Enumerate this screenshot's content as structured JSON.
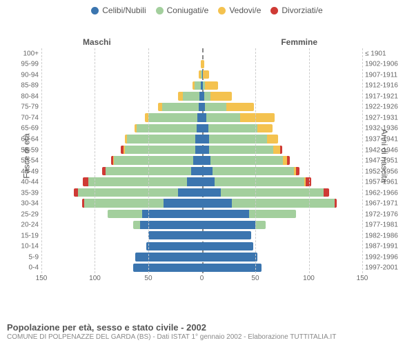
{
  "legend": {
    "items": [
      {
        "label": "Celibi/Nubili",
        "color": "#3b75af"
      },
      {
        "label": "Coniugati/e",
        "color": "#a3cf9d"
      },
      {
        "label": "Vedovi/e",
        "color": "#f4c24f"
      },
      {
        "label": "Divorziati/e",
        "color": "#cf3a35"
      }
    ]
  },
  "colors": {
    "single": "#3b75af",
    "married": "#a3cf9d",
    "widowed": "#f4c24f",
    "divorced": "#cf3a35",
    "grid": "#cccccc",
    "center": "#888888"
  },
  "axes": {
    "left_title": "Fasce di età",
    "right_title": "Anni di nascita",
    "maschi": "Maschi",
    "femmine": "Femmine",
    "xmax": 150,
    "xticks": [
      150,
      100,
      50,
      0,
      50,
      100,
      150
    ]
  },
  "caption": {
    "title": "Popolazione per età, sesso e stato civile - 2002",
    "sub": "COMUNE DI POLPENAZZE DEL GARDA (BS) - Dati ISTAT 1° gennaio 2002 - Elaborazione TUTTITALIA.IT"
  },
  "rows": [
    {
      "age": "100+",
      "year": "≤ 1901",
      "m": {
        "s": 0,
        "c": 0,
        "w": 0,
        "d": 0
      },
      "f": {
        "s": 0,
        "c": 0,
        "w": 0,
        "d": 0
      }
    },
    {
      "age": "95-99",
      "year": "1902-1906",
      "m": {
        "s": 0,
        "c": 0,
        "w": 1,
        "d": 0
      },
      "f": {
        "s": 0,
        "c": 0,
        "w": 2,
        "d": 0
      }
    },
    {
      "age": "90-94",
      "year": "1907-1911",
      "m": {
        "s": 0,
        "c": 1,
        "w": 2,
        "d": 0
      },
      "f": {
        "s": 1,
        "c": 0,
        "w": 6,
        "d": 0
      }
    },
    {
      "age": "85-89",
      "year": "1912-1916",
      "m": {
        "s": 1,
        "c": 6,
        "w": 2,
        "d": 0
      },
      "f": {
        "s": 1,
        "c": 2,
        "w": 12,
        "d": 0
      }
    },
    {
      "age": "80-84",
      "year": "1917-1921",
      "m": {
        "s": 2,
        "c": 16,
        "w": 4,
        "d": 0
      },
      "f": {
        "s": 2,
        "c": 6,
        "w": 20,
        "d": 0
      }
    },
    {
      "age": "75-79",
      "year": "1922-1926",
      "m": {
        "s": 3,
        "c": 34,
        "w": 4,
        "d": 0
      },
      "f": {
        "s": 3,
        "c": 20,
        "w": 26,
        "d": 0
      }
    },
    {
      "age": "70-74",
      "year": "1927-1931",
      "m": {
        "s": 4,
        "c": 46,
        "w": 3,
        "d": 0
      },
      "f": {
        "s": 4,
        "c": 32,
        "w": 32,
        "d": 0
      }
    },
    {
      "age": "65-69",
      "year": "1932-1936",
      "m": {
        "s": 5,
        "c": 56,
        "w": 2,
        "d": 0
      },
      "f": {
        "s": 6,
        "c": 46,
        "w": 14,
        "d": 0
      }
    },
    {
      "age": "60-64",
      "year": "1937-1941",
      "m": {
        "s": 6,
        "c": 64,
        "w": 2,
        "d": 0
      },
      "f": {
        "s": 7,
        "c": 54,
        "w": 10,
        "d": 0
      }
    },
    {
      "age": "55-59",
      "year": "1942-1946",
      "m": {
        "s": 6,
        "c": 66,
        "w": 1,
        "d": 3
      },
      "f": {
        "s": 7,
        "c": 60,
        "w": 6,
        "d": 2
      }
    },
    {
      "age": "50-54",
      "year": "1947-1951",
      "m": {
        "s": 8,
        "c": 74,
        "w": 1,
        "d": 2
      },
      "f": {
        "s": 8,
        "c": 68,
        "w": 4,
        "d": 2
      }
    },
    {
      "age": "45-49",
      "year": "1952-1956",
      "m": {
        "s": 10,
        "c": 80,
        "w": 0,
        "d": 3
      },
      "f": {
        "s": 10,
        "c": 76,
        "w": 2,
        "d": 3
      }
    },
    {
      "age": "40-44",
      "year": "1957-1961",
      "m": {
        "s": 14,
        "c": 92,
        "w": 0,
        "d": 5
      },
      "f": {
        "s": 12,
        "c": 84,
        "w": 1,
        "d": 5
      }
    },
    {
      "age": "35-39",
      "year": "1962-1966",
      "m": {
        "s": 22,
        "c": 94,
        "w": 0,
        "d": 4
      },
      "f": {
        "s": 18,
        "c": 96,
        "w": 0,
        "d": 5
      }
    },
    {
      "age": "30-34",
      "year": "1967-1971",
      "m": {
        "s": 36,
        "c": 74,
        "w": 0,
        "d": 2
      },
      "f": {
        "s": 28,
        "c": 96,
        "w": 0,
        "d": 2
      }
    },
    {
      "age": "25-29",
      "year": "1972-1976",
      "m": {
        "s": 56,
        "c": 32,
        "w": 0,
        "d": 0
      },
      "f": {
        "s": 44,
        "c": 44,
        "w": 0,
        "d": 0
      }
    },
    {
      "age": "20-24",
      "year": "1977-1981",
      "m": {
        "s": 58,
        "c": 6,
        "w": 0,
        "d": 0
      },
      "f": {
        "s": 50,
        "c": 10,
        "w": 0,
        "d": 0
      }
    },
    {
      "age": "15-19",
      "year": "1982-1986",
      "m": {
        "s": 50,
        "c": 0,
        "w": 0,
        "d": 0
      },
      "f": {
        "s": 46,
        "c": 0,
        "w": 0,
        "d": 0
      }
    },
    {
      "age": "10-14",
      "year": "1987-1991",
      "m": {
        "s": 52,
        "c": 0,
        "w": 0,
        "d": 0
      },
      "f": {
        "s": 48,
        "c": 0,
        "w": 0,
        "d": 0
      }
    },
    {
      "age": "5-9",
      "year": "1992-1996",
      "m": {
        "s": 62,
        "c": 0,
        "w": 0,
        "d": 0
      },
      "f": {
        "s": 52,
        "c": 0,
        "w": 0,
        "d": 0
      }
    },
    {
      "age": "0-4",
      "year": "1997-2001",
      "m": {
        "s": 64,
        "c": 0,
        "w": 0,
        "d": 0
      },
      "f": {
        "s": 56,
        "c": 0,
        "w": 0,
        "d": 0
      }
    }
  ]
}
